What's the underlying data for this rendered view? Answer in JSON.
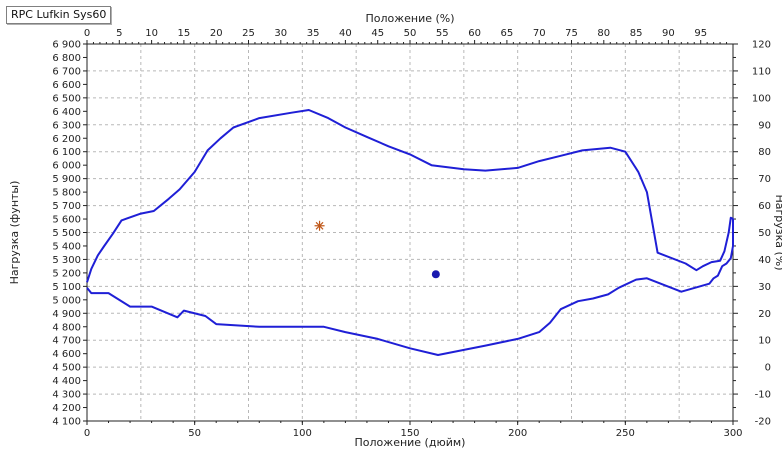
{
  "label_tag": "RPC Lufkin Sys60",
  "chart_data": {
    "type": "line",
    "title": "",
    "xlabel": "Положение (дюйм)",
    "x2label": "Положение (%)",
    "ylabel": "Нагрузка (фунты)",
    "y2label": "Нагрузка (%)",
    "xlim": [
      0,
      300
    ],
    "ylim": [
      4100,
      6900
    ],
    "x2lim": [
      0,
      100
    ],
    "y2lim": [
      -20,
      120
    ],
    "x_ticks": [
      0,
      50,
      100,
      150,
      200,
      250,
      300
    ],
    "x_tick_labels": [
      "0",
      "50",
      "100",
      "150",
      "200",
      "250",
      "300"
    ],
    "x_minor_step": 25,
    "y_ticks": [
      4100,
      4200,
      4300,
      4400,
      4500,
      4600,
      4700,
      4800,
      4900,
      5000,
      5100,
      5200,
      5300,
      5400,
      5500,
      5600,
      5700,
      5800,
      5900,
      6000,
      6100,
      6200,
      6300,
      6400,
      6500,
      6600,
      6700,
      6800,
      6900
    ],
    "y_tick_labels": [
      "4 100",
      "4 200",
      "4 300",
      "4 400",
      "4 500",
      "4 600",
      "4 700",
      "4 800",
      "4 900",
      "5 000",
      "5 100",
      "5 200",
      "5 300",
      "5 400",
      "5 500",
      "5 600",
      "5 700",
      "5 800",
      "5 900",
      "6 000",
      "6 100",
      "6 200",
      "6 300",
      "6 400",
      "6 500",
      "6 600",
      "6 700",
      "6 800",
      "6 900"
    ],
    "y_grid_step": 200,
    "x2_ticks": [
      0,
      5,
      10,
      15,
      20,
      25,
      30,
      35,
      40,
      45,
      50,
      55,
      60,
      65,
      70,
      75,
      80,
      85,
      90,
      95
    ],
    "x2_tick_labels": [
      "0",
      "5",
      "10",
      "15",
      "20",
      "25",
      "30",
      "35",
      "40",
      "45",
      "50",
      "55",
      "60",
      "65",
      "70",
      "75",
      "80",
      "85",
      "90",
      "95"
    ],
    "y2_ticks": [
      -20,
      -10,
      0,
      10,
      20,
      30,
      40,
      50,
      60,
      70,
      80,
      90,
      100,
      110,
      120
    ],
    "y2_tick_labels": [
      "-20",
      "-10",
      "0",
      "10",
      "20",
      "30",
      "40",
      "50",
      "60",
      "70",
      "80",
      "90",
      "100",
      "110",
      "120"
    ],
    "grid": true,
    "series": [
      {
        "color": "#1f1fd6",
        "x": [
          0,
          2,
          5,
          8,
          12,
          16,
          25,
          31,
          38,
          43,
          50,
          56,
          62,
          68,
          80,
          95,
          103,
          112,
          120,
          130,
          140,
          150,
          160,
          175,
          185,
          200,
          210,
          220,
          230,
          243,
          250,
          256,
          260,
          265,
          278,
          283,
          286,
          290,
          294,
          296,
          298,
          299,
          300,
          300,
          299,
          297,
          295,
          293,
          291,
          289,
          276,
          260,
          255,
          247,
          242,
          235,
          228,
          220,
          215,
          210,
          200,
          185,
          163,
          150,
          135,
          120,
          110,
          100,
          80,
          60,
          55,
          45,
          42,
          30,
          20,
          10,
          5,
          2,
          0
        ],
        "y": [
          5130,
          5230,
          5330,
          5400,
          5490,
          5590,
          5640,
          5660,
          5750,
          5820,
          5950,
          6110,
          6200,
          6280,
          6350,
          6390,
          6410,
          6350,
          6280,
          6210,
          6140,
          6080,
          6000,
          5970,
          5960,
          5980,
          6030,
          6070,
          6110,
          6130,
          6100,
          5950,
          5800,
          5350,
          5270,
          5220,
          5250,
          5280,
          5290,
          5360,
          5500,
          5610,
          5600,
          5400,
          5310,
          5270,
          5250,
          5180,
          5160,
          5120,
          5060,
          5160,
          5150,
          5090,
          5040,
          5010,
          4990,
          4930,
          4830,
          4760,
          4710,
          4660,
          4590,
          4640,
          4710,
          4760,
          4800,
          4800,
          4800,
          4820,
          4880,
          4920,
          4870,
          4950,
          4950,
          5050,
          5050,
          5050,
          5090
        ]
      }
    ],
    "markers": [
      {
        "symbol": "asterisk",
        "x": 108,
        "y": 5550,
        "color": "#c0581a"
      },
      {
        "symbol": "dot",
        "x": 162,
        "y": 5190,
        "color": "#1a1ab0"
      }
    ]
  }
}
